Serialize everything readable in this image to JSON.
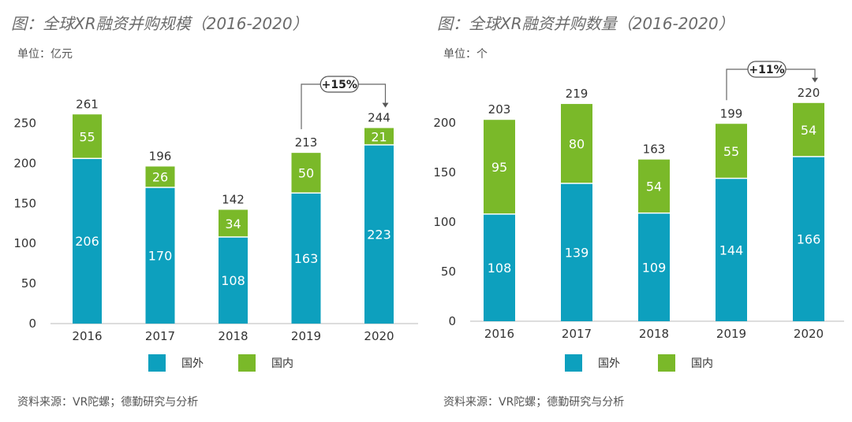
{
  "chart_data": [
    {
      "type": "bar",
      "stacked": true,
      "title": "图：全球XR融资并购规模（2016-2020）",
      "unit": "单位：亿元",
      "source": "资料来源：VR陀螺；德勤研究与分析",
      "categories": [
        "2016",
        "2017",
        "2018",
        "2019",
        "2020"
      ],
      "series": [
        {
          "name": "国外",
          "color": "#0da0be",
          "values": [
            206,
            170,
            108,
            163,
            223
          ]
        },
        {
          "name": "国内",
          "color": "#7ab929",
          "values": [
            55,
            26,
            34,
            50,
            21
          ]
        }
      ],
      "totals": [
        261,
        196,
        142,
        213,
        244
      ],
      "yticks": [
        0,
        50,
        100,
        150,
        200,
        250
      ],
      "ylim": [
        0,
        260
      ],
      "growth_label": "+15%",
      "growth_from": "2019",
      "growth_to": "2020"
    },
    {
      "type": "bar",
      "stacked": true,
      "title": "图：全球XR融资并购数量（2016-2020）",
      "unit": "单位：个",
      "source": "资料来源：VR陀螺；德勤研究与分析",
      "categories": [
        "2016",
        "2017",
        "2018",
        "2019",
        "2020"
      ],
      "series": [
        {
          "name": "国外",
          "color": "#0da0be",
          "values": [
            108,
            139,
            109,
            144,
            166
          ]
        },
        {
          "name": "国内",
          "color": "#7ab929",
          "values": [
            95,
            80,
            54,
            55,
            54
          ]
        }
      ],
      "totals": [
        203,
        219,
        163,
        199,
        220
      ],
      "yticks": [
        0,
        50,
        100,
        150,
        200
      ],
      "ylim": [
        0,
        220
      ],
      "growth_label": "+11%",
      "growth_from": "2019",
      "growth_to": "2020"
    }
  ]
}
